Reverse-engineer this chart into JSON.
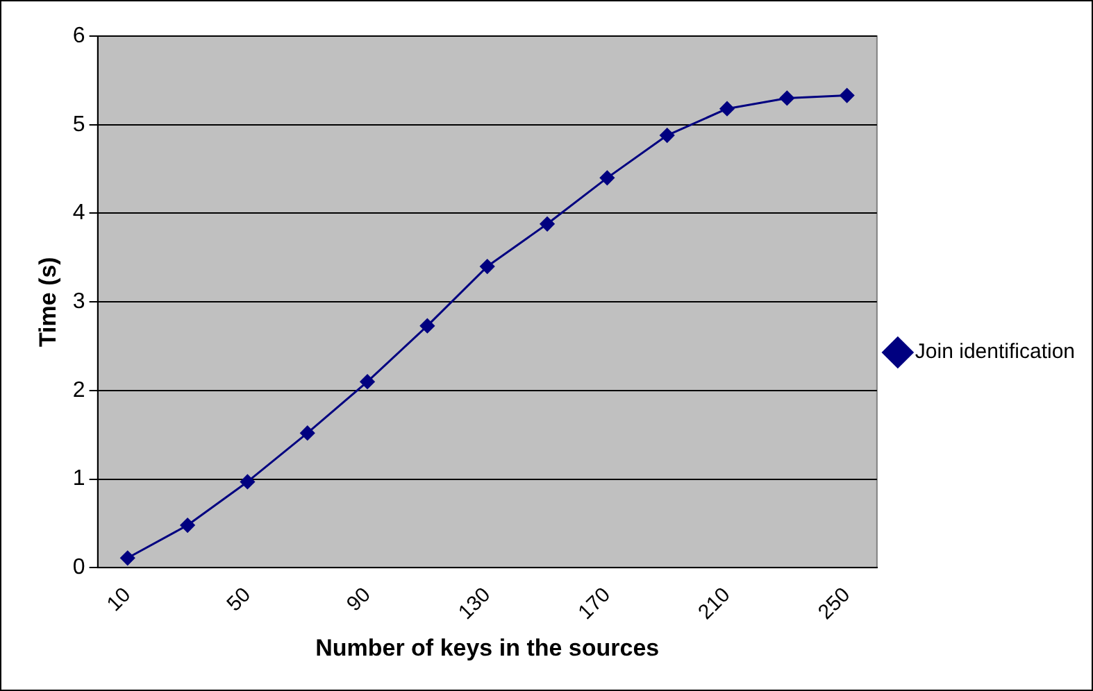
{
  "chart_data": {
    "type": "line",
    "xlabel": "Number of keys in the sources",
    "ylabel": "Time (s)",
    "categories": [
      "10",
      null,
      "50",
      null,
      "90",
      null,
      "130",
      null,
      "170",
      null,
      "210",
      null,
      "250"
    ],
    "series": [
      {
        "name": "Join identification",
        "color": "#000080",
        "values": [
          0.11,
          0.48,
          0.97,
          1.52,
          2.1,
          2.73,
          3.4,
          3.88,
          4.4,
          4.88,
          5.18,
          5.3,
          5.33
        ]
      }
    ],
    "ylim": [
      0,
      6
    ],
    "yticks": [
      0,
      1,
      2,
      3,
      4,
      5,
      6
    ],
    "grid": "y",
    "legend": "right",
    "marker": "diamond",
    "line_style": "solid"
  }
}
